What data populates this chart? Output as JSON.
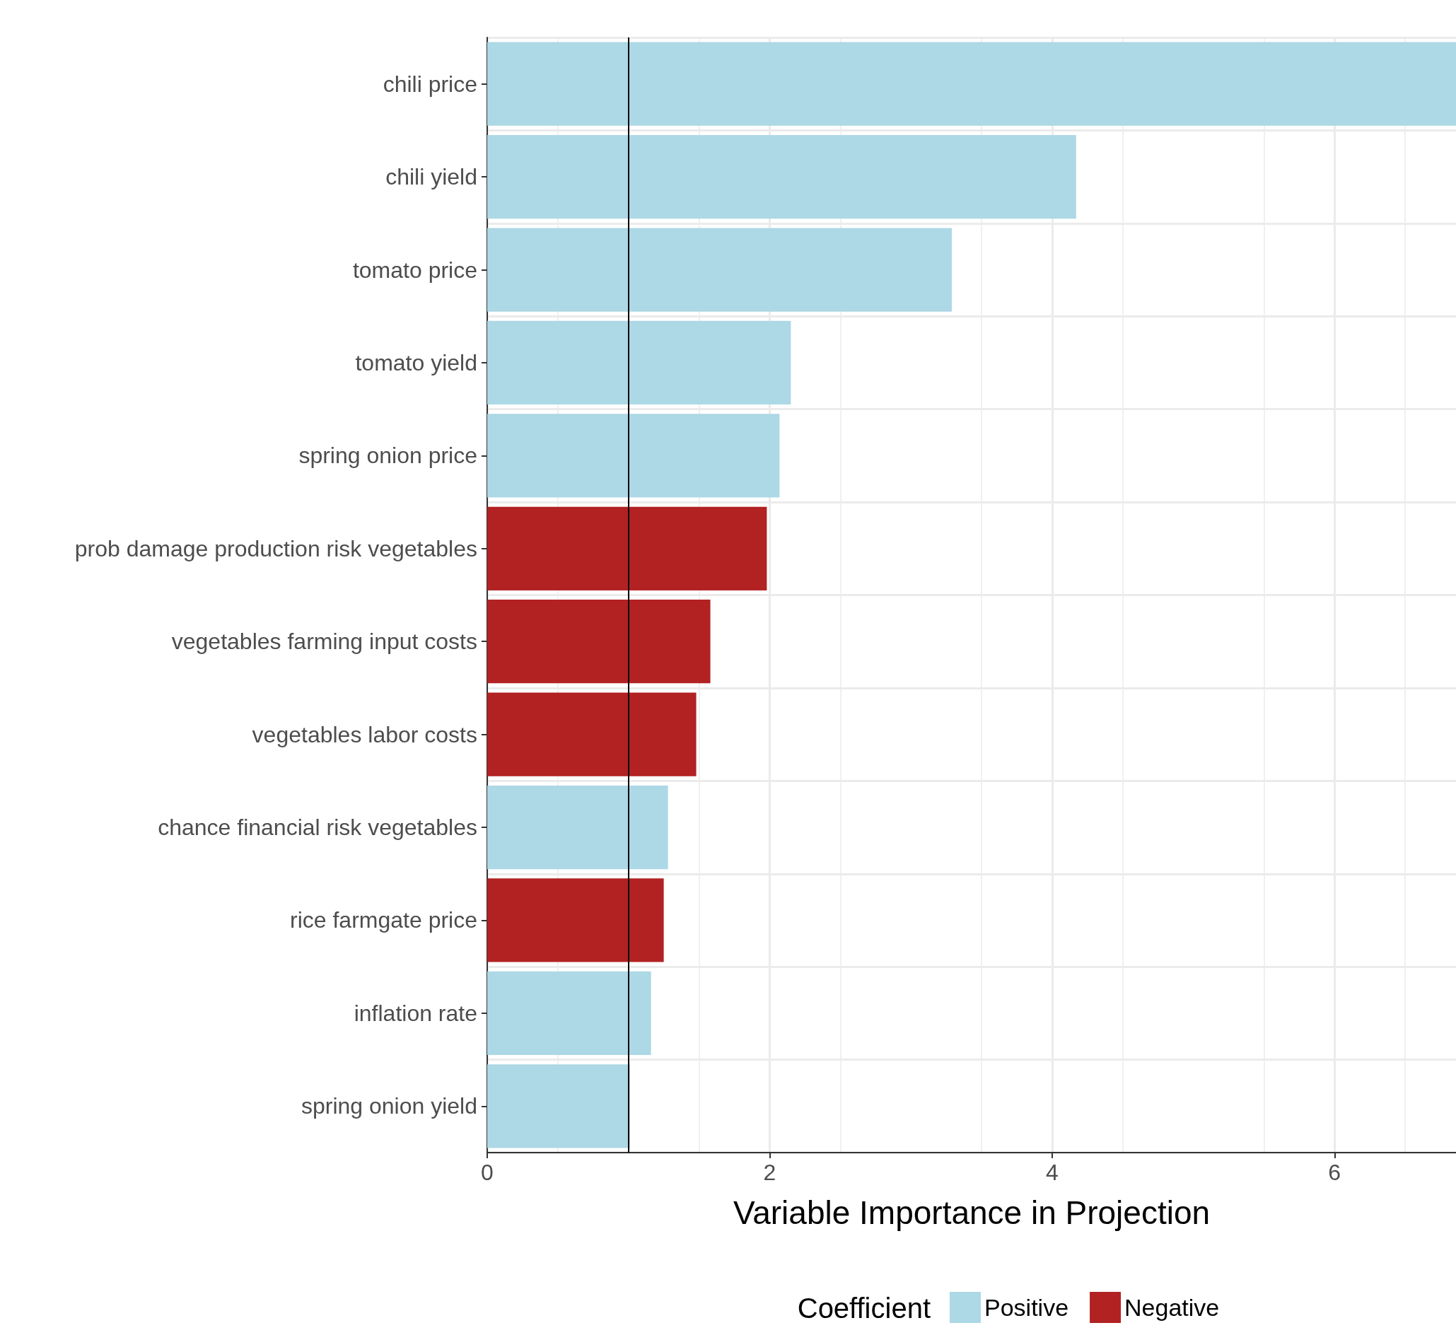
{
  "chart_data": {
    "type": "bar",
    "orientation": "horizontal",
    "stacked": true,
    "xlabel": "Variable Importance in Projection",
    "legend_title": "Coefficient",
    "legend": "bottom",
    "grid": true,
    "categories": [
      "chili price",
      "chili yield",
      "tomato price",
      "tomato yield",
      "spring onion price",
      "prob damage production risk vegetables",
      "vegetables farming input costs",
      "vegetables labor costs",
      "chance financial risk vegetables",
      "rice farmgate price",
      "inflation rate",
      "spring onion yield"
    ],
    "series": [
      {
        "name": "Positive",
        "color": "#add8e6",
        "values": [
          6.86,
          4.17,
          3.29,
          2.15,
          2.07,
          null,
          null,
          null,
          1.28,
          null,
          1.16,
          1.01
        ]
      },
      {
        "name": "Negative",
        "color": "#b22222",
        "values": [
          null,
          null,
          null,
          null,
          null,
          1.98,
          1.58,
          1.48,
          null,
          1.25,
          null,
          null
        ]
      }
    ],
    "xlim": [
      0,
      6.86
    ],
    "xticks": [
      0,
      2,
      4,
      6
    ],
    "ref_lines": [
      {
        "axis": "x",
        "value": 1,
        "color": "#000000"
      }
    ]
  }
}
